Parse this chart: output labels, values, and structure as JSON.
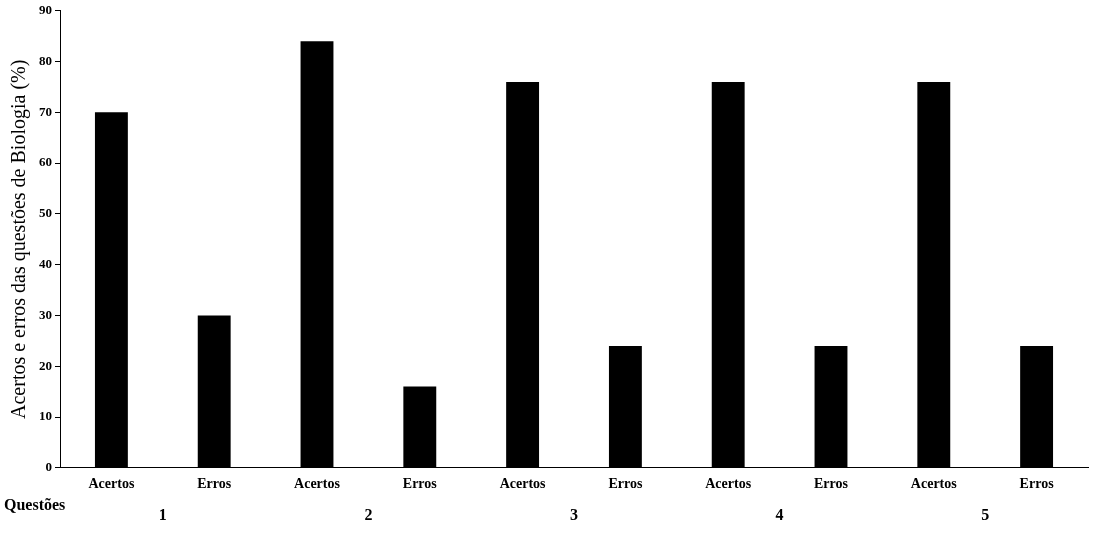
{
  "chart_data": {
    "type": "bar",
    "ylabel": "Acertos e erros das questões de Biologia (%)",
    "xlabel": "Questões",
    "categories": [
      "1",
      "2",
      "3",
      "4",
      "5"
    ],
    "series": [
      {
        "name": "Acertos",
        "color": "#000000",
        "values": [
          70,
          84,
          76,
          76,
          76
        ]
      },
      {
        "name": "Erros",
        "color": "#000000",
        "values": [
          30,
          16,
          24,
          24,
          24
        ]
      }
    ],
    "ylim": [
      0,
      90
    ],
    "yticks": [
      0,
      10,
      20,
      30,
      40,
      50,
      60,
      70,
      80,
      90
    ],
    "legend": false
  }
}
